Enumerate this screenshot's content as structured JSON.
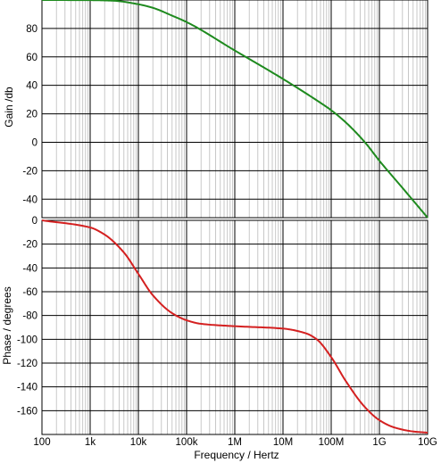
{
  "chart_data": [
    {
      "type": "line",
      "xlabel": "",
      "ylabel": "Gain /db",
      "x_scale": "log",
      "xlim": [
        100,
        10000000000
      ],
      "ylim": [
        -53,
        100
      ],
      "yticks": [
        80,
        60,
        40,
        20,
        0,
        -20,
        -40
      ],
      "ytick_labels": [
        "80",
        "60",
        "40",
        "20",
        "0",
        "-20",
        "-40"
      ],
      "grid": true,
      "series": [
        {
          "color": "#1e8a1e",
          "x": [
            100,
            1000,
            3000,
            10000,
            20000,
            50000,
            100000,
            1000000,
            10000000,
            50000000,
            100000000,
            200000000,
            500000000,
            1000000000,
            3000000000,
            10000000000
          ],
          "y": [
            100,
            99.9,
            99.5,
            97,
            94.5,
            89,
            84.5,
            64.5,
            44.5,
            29.5,
            22.5,
            14,
            0,
            -13,
            -32,
            -53
          ]
        }
      ]
    },
    {
      "type": "line",
      "xlabel": "Frequency / Hertz",
      "ylabel": "Phase / degrees",
      "x_scale": "log",
      "xlim": [
        100,
        10000000000
      ],
      "ylim": [
        -180,
        0
      ],
      "xticks": [
        100,
        1000,
        10000,
        100000,
        1000000,
        10000000,
        100000000,
        1000000000,
        10000000000
      ],
      "xtick_labels": [
        "100",
        "1k",
        "10k",
        "100k",
        "1M",
        "10M",
        "100M",
        "1G",
        "10G"
      ],
      "yticks": [
        0,
        -20,
        -40,
        -60,
        -80,
        -100,
        -120,
        -140,
        -160
      ],
      "ytick_labels": [
        "0",
        "-20",
        "-40",
        "-60",
        "-80",
        "-100",
        "-120",
        "-140",
        "-160"
      ],
      "grid": true,
      "series": [
        {
          "color": "#d42020",
          "x": [
            100,
            1000,
            2000,
            5000,
            10000,
            20000,
            50000,
            100000,
            200000,
            1000000,
            10000000,
            30000000,
            50000000,
            100000000,
            200000000,
            500000000,
            1000000000,
            2000000000,
            5000000000,
            10000000000
          ],
          "y": [
            0,
            -6,
            -12,
            -27,
            -45,
            -63,
            -78,
            -84,
            -87,
            -89,
            -91,
            -95,
            -100,
            -115,
            -135,
            -157,
            -168,
            -174,
            -177.5,
            -178.5
          ]
        }
      ]
    }
  ]
}
